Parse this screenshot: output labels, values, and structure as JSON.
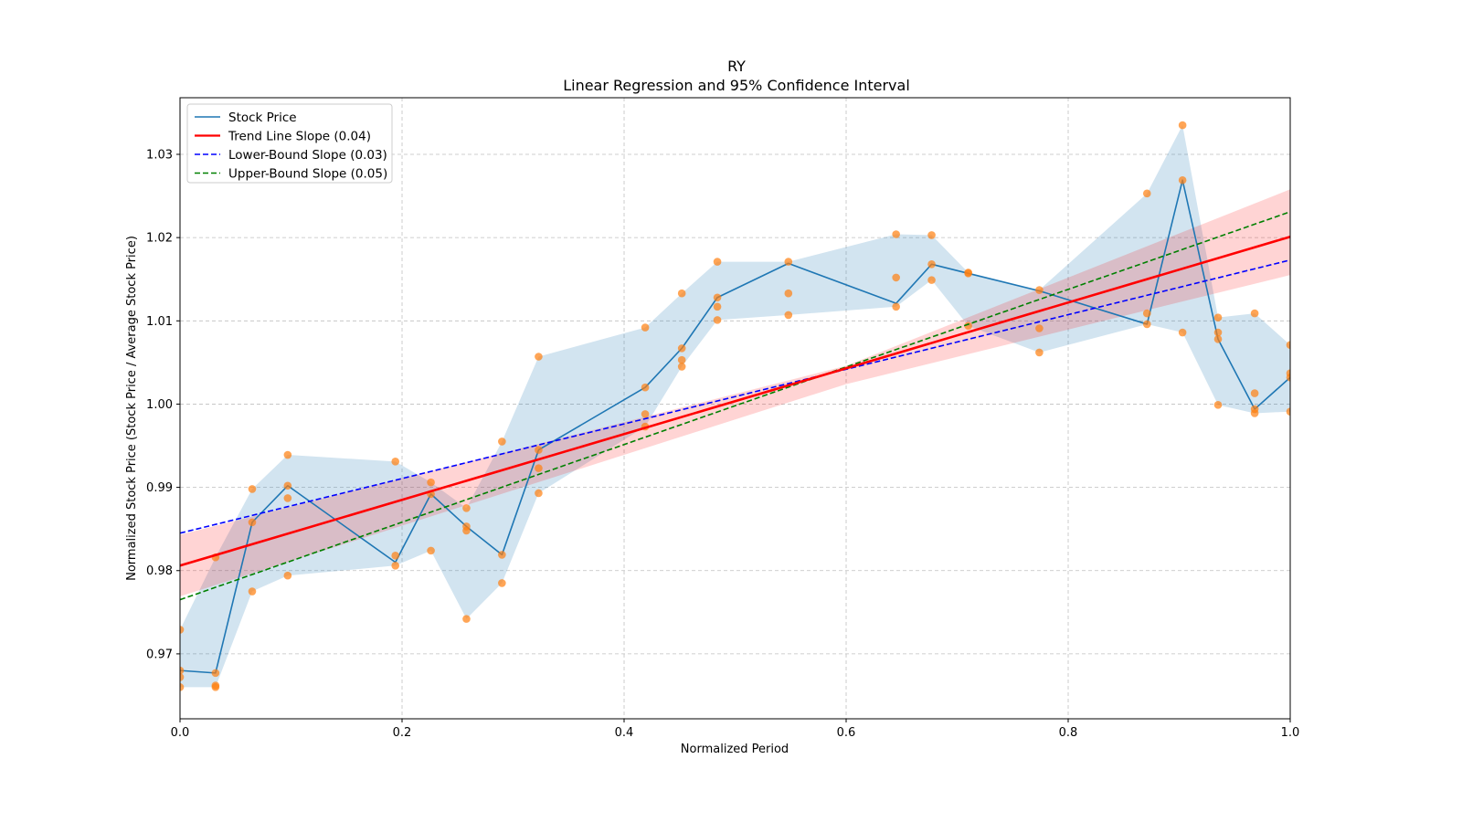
{
  "chart_data": {
    "type": "line",
    "title": "RY",
    "subtitle": "Linear Regression and 95% Confidence Interval",
    "xlabel": "Normalized Period",
    "ylabel": "Normalized Stock Price (Stock Price / Average Stock Price)",
    "xlim": [
      0,
      1
    ],
    "ylim": [
      0.9622,
      1.0368
    ],
    "xticks": [
      0.0,
      0.2,
      0.4,
      0.6,
      0.8,
      1.0
    ],
    "xtick_labels": [
      "0.0",
      "0.2",
      "0.4",
      "0.6",
      "0.8",
      "1.0"
    ],
    "yticks": [
      0.97,
      0.98,
      0.99,
      1.0,
      1.01,
      1.02,
      1.03
    ],
    "ytick_labels": [
      "0.97",
      "0.98",
      "0.99",
      "1.00",
      "1.01",
      "1.02",
      "1.03"
    ],
    "grid": true,
    "legend_position": "top-left",
    "colors": {
      "stock": "#1f77b4",
      "band_fill": "#1f77b4",
      "scatter": "#ff7f0e",
      "trend": "#ff0000",
      "trend_ci": "#ff0000",
      "lower": "#0000ff",
      "upper": "#008000",
      "grid": "#b0b0b0"
    },
    "legend": [
      {
        "label": "Stock Price",
        "style": "solid",
        "color": "#1f77b4"
      },
      {
        "label": "Trend Line Slope (0.04)",
        "style": "solid-thick",
        "color": "#ff0000"
      },
      {
        "label": "Lower-Bound Slope (0.03)",
        "style": "dashed",
        "color": "#0000ff"
      },
      {
        "label": "Upper-Bound Slope (0.05)",
        "style": "dashed",
        "color": "#008000"
      }
    ],
    "stock_price_series": {
      "name": "Stock Price",
      "x": [
        0.0,
        0.032,
        0.065,
        0.097,
        0.194,
        0.226,
        0.258,
        0.29,
        0.323,
        0.419,
        0.452,
        0.484,
        0.548,
        0.645,
        0.677,
        0.71,
        0.774,
        0.871,
        0.903,
        0.935,
        0.968,
        1.0
      ],
      "y": [
        0.968,
        0.9677,
        0.9858,
        0.9902,
        0.981,
        0.9892,
        0.9853,
        0.9819,
        0.9945,
        1.002,
        1.0067,
        1.0128,
        1.0169,
        1.0121,
        1.0168,
        1.0157,
        1.0136,
        1.0096,
        1.0269,
        1.0078,
        0.9994,
        1.0032
      ]
    },
    "range_band": {
      "x": [
        0.0,
        0.032,
        0.065,
        0.097,
        0.194,
        0.226,
        0.258,
        0.29,
        0.323,
        0.419,
        0.452,
        0.484,
        0.548,
        0.645,
        0.677,
        0.71,
        0.774,
        0.871,
        0.903,
        0.935,
        0.968,
        1.0
      ],
      "lower": [
        0.966,
        0.966,
        0.9775,
        0.9794,
        0.9806,
        0.9824,
        0.9742,
        0.9785,
        0.9893,
        0.9973,
        1.0045,
        1.0101,
        1.0107,
        1.0117,
        1.0149,
        1.0094,
        1.0062,
        1.0096,
        1.0086,
        0.9999,
        0.9989,
        0.9991
      ],
      "upper": [
        0.9729,
        0.9816,
        0.9898,
        0.9939,
        0.9931,
        0.9906,
        0.9875,
        0.9955,
        1.0057,
        1.0092,
        1.0133,
        1.0171,
        1.0171,
        1.0204,
        1.0203,
        1.0158,
        1.0137,
        1.0253,
        1.0335,
        1.0104,
        1.0109,
        1.0071
      ]
    },
    "scatter_points": {
      "x": [
        0.0,
        0.0,
        0.0,
        0.0,
        0.032,
        0.032,
        0.032,
        0.032,
        0.065,
        0.065,
        0.065,
        0.097,
        0.097,
        0.097,
        0.097,
        0.194,
        0.194,
        0.194,
        0.226,
        0.226,
        0.226,
        0.258,
        0.258,
        0.258,
        0.258,
        0.29,
        0.29,
        0.29,
        0.323,
        0.323,
        0.323,
        0.323,
        0.419,
        0.419,
        0.419,
        0.419,
        0.452,
        0.452,
        0.452,
        0.452,
        0.484,
        0.484,
        0.484,
        0.484,
        0.548,
        0.548,
        0.548,
        0.645,
        0.645,
        0.645,
        0.677,
        0.677,
        0.677,
        0.71,
        0.71,
        0.71,
        0.774,
        0.774,
        0.774,
        0.871,
        0.871,
        0.871,
        0.903,
        0.903,
        0.903,
        0.935,
        0.935,
        0.935,
        0.935,
        0.968,
        0.968,
        0.968,
        0.968,
        1.0,
        1.0,
        1.0,
        1.0
      ],
      "y": [
        0.9729,
        0.968,
        0.9672,
        0.966,
        0.9816,
        0.9677,
        0.9662,
        0.966,
        0.9898,
        0.9858,
        0.9775,
        0.9939,
        0.9902,
        0.9887,
        0.9794,
        0.9931,
        0.9818,
        0.9806,
        0.9906,
        0.9892,
        0.9824,
        0.9875,
        0.9853,
        0.9848,
        0.9742,
        0.9955,
        0.9819,
        0.9785,
        1.0057,
        0.9945,
        0.9923,
        0.9893,
        1.0092,
        1.002,
        0.9988,
        0.9973,
        1.0133,
        1.0067,
        1.0053,
        1.0045,
        1.0171,
        1.0128,
        1.0117,
        1.0101,
        1.0171,
        1.0133,
        1.0107,
        1.0204,
        1.0152,
        1.0117,
        1.0203,
        1.0168,
        1.0149,
        1.0158,
        1.0157,
        1.0094,
        1.0137,
        1.0091,
        1.0062,
        1.0253,
        1.0109,
        1.0096,
        1.0335,
        1.0269,
        1.0086,
        1.0104,
        1.0086,
        1.0078,
        0.9999,
        1.0109,
        1.0013,
        0.9994,
        0.9989,
        1.0071,
        1.0037,
        1.0032,
        0.9991
      ]
    },
    "trend_line": {
      "name": "Trend Line Slope (0.04)",
      "slope": 0.0395,
      "intercept": 0.9806
    },
    "trend_ci": {
      "x": [
        0.0,
        0.6,
        1.0
      ],
      "lower": [
        0.9769,
        1.0024,
        1.0155
      ],
      "upper": [
        0.9843,
        1.0046,
        1.0258
      ]
    },
    "lower_bound_line": {
      "name": "Lower-Bound Slope (0.03)",
      "slope": 0.0328,
      "intercept": 0.9845
    },
    "upper_bound_line": {
      "name": "Upper-Bound Slope (0.05)",
      "slope": 0.0466,
      "intercept": 0.9765
    }
  }
}
